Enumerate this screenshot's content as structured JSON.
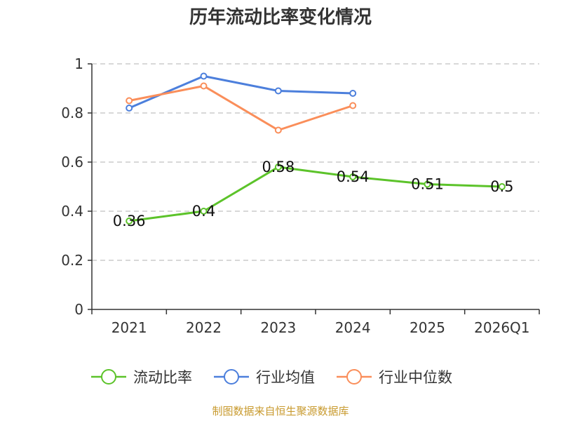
{
  "chart_data": {
    "type": "line",
    "title": "历年流动比率变化情况",
    "categories": [
      "2021",
      "2022",
      "2023",
      "2024",
      "2025",
      "2026Q1"
    ],
    "ylim": [
      0,
      1
    ],
    "yticks": [
      0,
      0.2,
      0.4,
      0.6,
      0.8,
      1
    ],
    "ytick_labels": [
      "0",
      "0.2",
      "0.4",
      "0.6",
      "0.8",
      "1"
    ],
    "grid": true,
    "legend_position": "bottom",
    "series": [
      {
        "name": "流动比率",
        "color": "#5cc32a",
        "values": [
          0.36,
          0.4,
          0.58,
          0.54,
          0.51,
          0.5
        ],
        "labels": [
          "0.36",
          "0.4",
          "0.58",
          "0.54",
          "0.51",
          "0.5"
        ]
      },
      {
        "name": "行业均值",
        "color": "#4c7fdc",
        "values": [
          0.82,
          0.95,
          0.89,
          0.88,
          null,
          null
        ]
      },
      {
        "name": "行业中位数",
        "color": "#fa8e5a",
        "values": [
          0.85,
          0.91,
          0.73,
          0.83,
          null,
          null
        ]
      }
    ]
  },
  "source": {
    "text": "制图数据来自恒生聚源数据库",
    "color": "#c89a2e"
  }
}
